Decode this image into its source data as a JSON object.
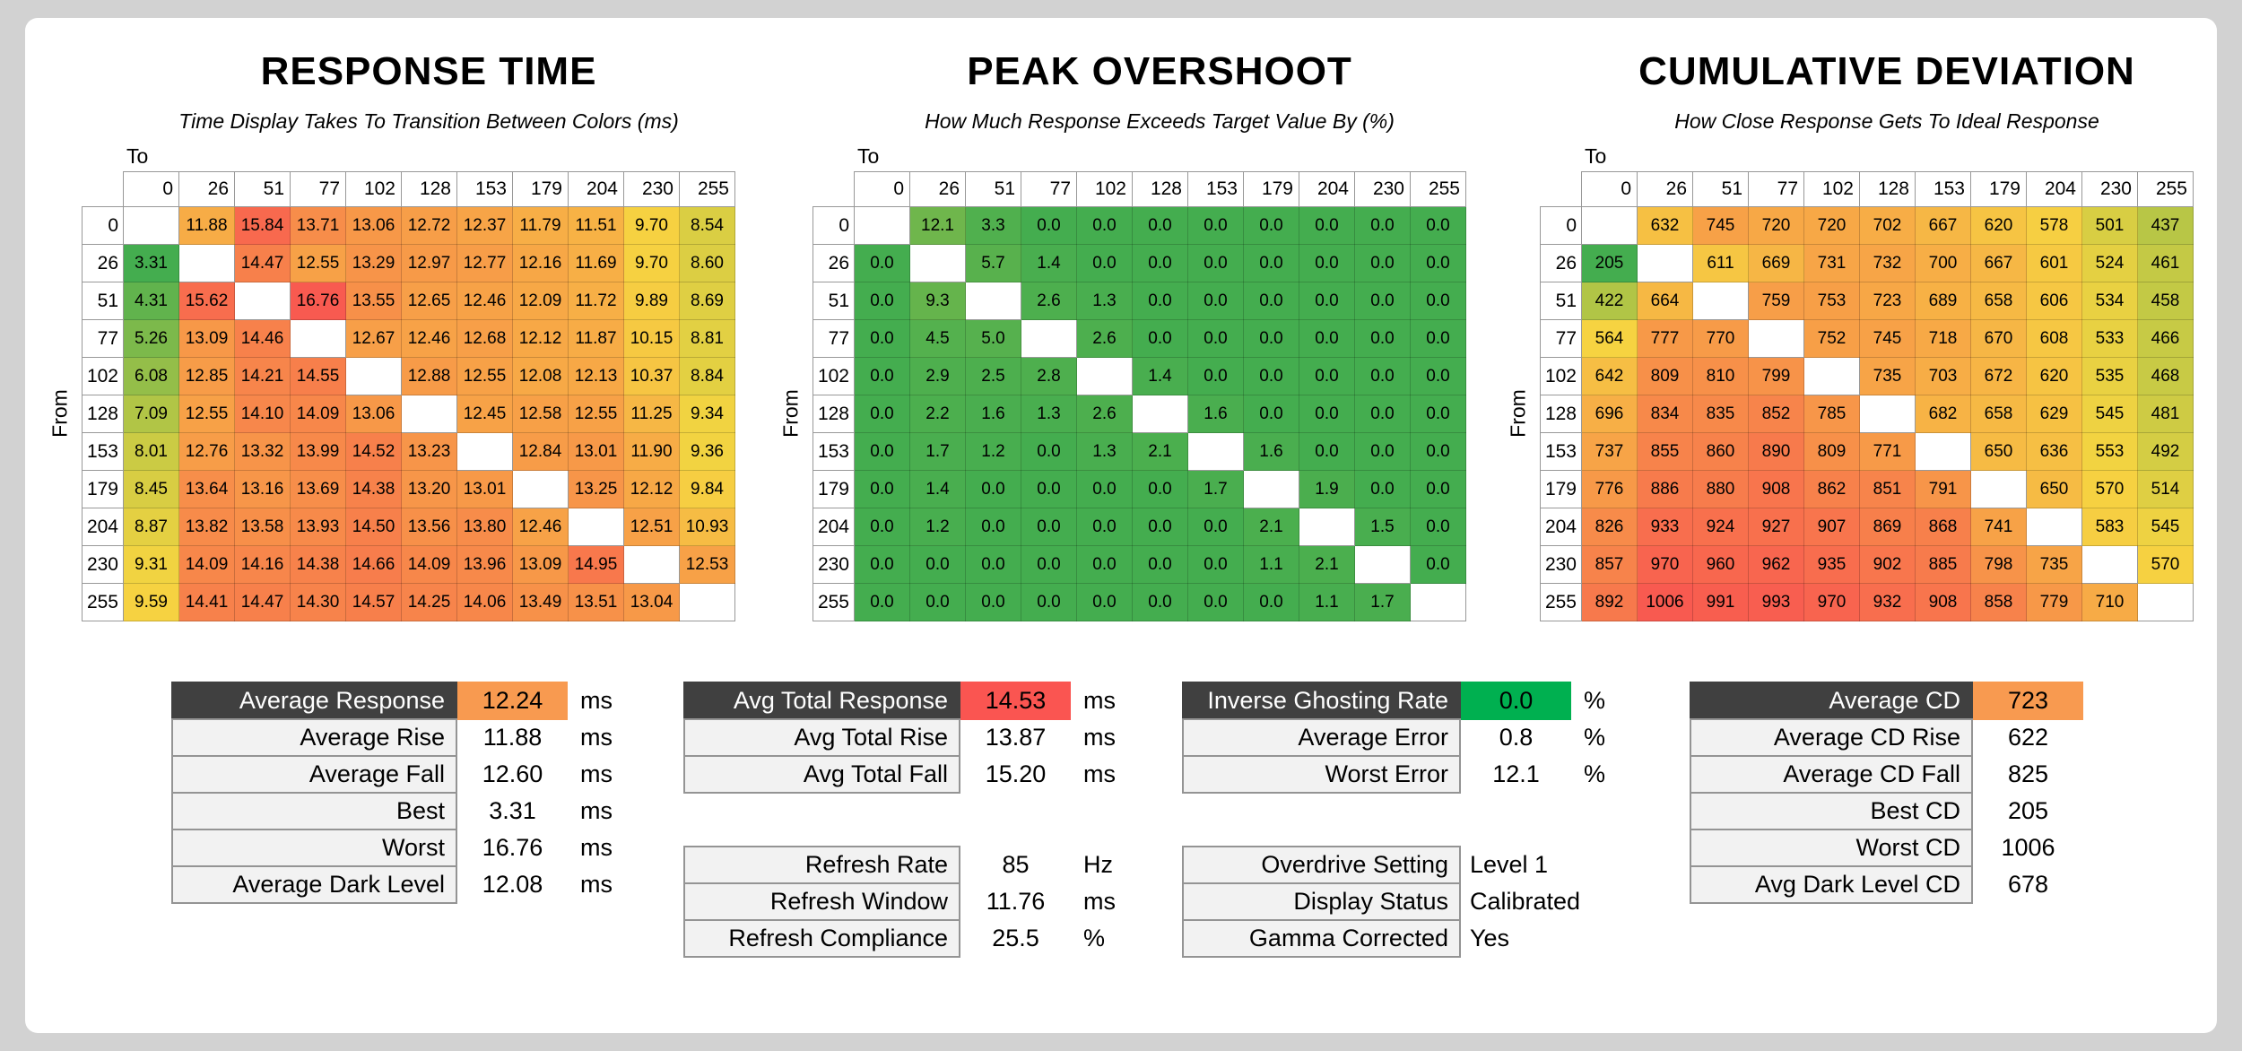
{
  "page": {
    "background": "#d2d2d2",
    "panel_background": "#ffffff",
    "header_bg": "#404040",
    "label_bg": "#f2f2f2",
    "accent_orange": "#F89A50",
    "accent_red": "#FA5551",
    "accent_green": "#00B050"
  },
  "chart_data": [
    {
      "type": "heatmap",
      "title": "RESPONSE TIME",
      "subtitle": "Time Display Takes To Transition Between Colors (ms)",
      "x_label": "To",
      "y_label": "From",
      "levels": [
        0,
        26,
        51,
        77,
        102,
        128,
        153,
        179,
        204,
        230,
        255
      ],
      "decimals": 2,
      "color_scale": {
        "min": 3.31,
        "mid": 9.5,
        "max": 16.76,
        "low": "#44AD4F",
        "mid_color": "#F6D441",
        "high": "#F85A50"
      },
      "rows": [
        [
          null,
          11.88,
          15.84,
          13.71,
          13.06,
          12.72,
          12.37,
          11.79,
          11.51,
          9.7,
          8.54
        ],
        [
          3.31,
          null,
          14.47,
          12.55,
          13.29,
          12.97,
          12.77,
          12.16,
          11.69,
          9.7,
          8.6
        ],
        [
          4.31,
          15.62,
          null,
          16.76,
          13.55,
          12.65,
          12.46,
          12.09,
          11.72,
          9.89,
          8.69
        ],
        [
          5.26,
          13.09,
          14.46,
          null,
          12.67,
          12.46,
          12.68,
          12.12,
          11.87,
          10.15,
          8.81
        ],
        [
          6.08,
          12.85,
          14.21,
          14.55,
          null,
          12.88,
          12.55,
          12.08,
          12.13,
          10.37,
          8.84
        ],
        [
          7.09,
          12.55,
          14.1,
          14.09,
          13.06,
          null,
          12.45,
          12.58,
          12.55,
          11.25,
          9.34
        ],
        [
          8.01,
          12.76,
          13.32,
          13.99,
          14.52,
          13.23,
          null,
          12.84,
          13.01,
          11.9,
          9.36
        ],
        [
          8.45,
          13.64,
          13.16,
          13.69,
          14.38,
          13.2,
          13.01,
          null,
          13.25,
          12.12,
          9.84
        ],
        [
          8.87,
          13.82,
          13.58,
          13.93,
          14.5,
          13.56,
          13.8,
          12.46,
          null,
          12.51,
          10.93
        ],
        [
          9.31,
          14.09,
          14.16,
          14.38,
          14.66,
          14.09,
          13.96,
          13.09,
          14.95,
          null,
          12.53
        ],
        [
          9.59,
          14.41,
          14.47,
          14.3,
          14.57,
          14.25,
          14.06,
          13.49,
          13.51,
          13.04,
          null
        ]
      ]
    },
    {
      "type": "heatmap",
      "title": "PEAK OVERSHOOT",
      "subtitle": "How Much Response Exceeds Target Value By (%)",
      "x_label": "To",
      "y_label": "From",
      "levels": [
        0,
        26,
        51,
        77,
        102,
        128,
        153,
        179,
        204,
        230,
        255
      ],
      "decimals": 1,
      "color_scale": {
        "min": 0,
        "mid": 50,
        "max": 100,
        "low": "#44AD4F",
        "mid_color": "#F6D441",
        "high": "#F85A50"
      },
      "rows": [
        [
          null,
          12.1,
          3.3,
          0.0,
          0.0,
          0.0,
          0.0,
          0.0,
          0.0,
          0.0,
          0.0
        ],
        [
          0.0,
          null,
          5.7,
          1.4,
          0.0,
          0.0,
          0.0,
          0.0,
          0.0,
          0.0,
          0.0
        ],
        [
          0.0,
          9.3,
          null,
          2.6,
          1.3,
          0.0,
          0.0,
          0.0,
          0.0,
          0.0,
          0.0
        ],
        [
          0.0,
          4.5,
          5.0,
          null,
          2.6,
          0.0,
          0.0,
          0.0,
          0.0,
          0.0,
          0.0
        ],
        [
          0.0,
          2.9,
          2.5,
          2.8,
          null,
          1.4,
          0.0,
          0.0,
          0.0,
          0.0,
          0.0
        ],
        [
          0.0,
          2.2,
          1.6,
          1.3,
          2.6,
          null,
          1.6,
          0.0,
          0.0,
          0.0,
          0.0
        ],
        [
          0.0,
          1.7,
          1.2,
          0.0,
          1.3,
          2.1,
          null,
          1.6,
          0.0,
          0.0,
          0.0
        ],
        [
          0.0,
          1.4,
          0.0,
          0.0,
          0.0,
          0.0,
          1.7,
          null,
          1.9,
          0.0,
          0.0
        ],
        [
          0.0,
          1.2,
          0.0,
          0.0,
          0.0,
          0.0,
          0.0,
          2.1,
          null,
          1.5,
          0.0
        ],
        [
          0.0,
          0.0,
          0.0,
          0.0,
          0.0,
          0.0,
          0.0,
          1.1,
          2.1,
          null,
          0.0
        ],
        [
          0.0,
          0.0,
          0.0,
          0.0,
          0.0,
          0.0,
          0.0,
          0.0,
          1.1,
          1.7,
          null
        ]
      ]
    },
    {
      "type": "heatmap",
      "title": "CUMULATIVE DEVIATION",
      "subtitle": "How Close Response Gets To Ideal Response",
      "x_label": "To",
      "y_label": "From",
      "levels": [
        0,
        26,
        51,
        77,
        102,
        128,
        153,
        179,
        204,
        230,
        255
      ],
      "decimals": 0,
      "color_scale": {
        "min": 205,
        "mid": 560,
        "max": 1006,
        "low": "#44AD4F",
        "mid_color": "#F6D441",
        "high": "#F85A50"
      },
      "rows": [
        [
          null,
          632,
          745,
          720,
          720,
          702,
          667,
          620,
          578,
          501,
          437
        ],
        [
          205,
          null,
          611,
          669,
          731,
          732,
          700,
          667,
          601,
          524,
          461
        ],
        [
          422,
          664,
          null,
          759,
          753,
          723,
          689,
          658,
          606,
          534,
          458
        ],
        [
          564,
          777,
          770,
          null,
          752,
          745,
          718,
          670,
          608,
          533,
          466
        ],
        [
          642,
          809,
          810,
          799,
          null,
          735,
          703,
          672,
          620,
          535,
          468
        ],
        [
          696,
          834,
          835,
          852,
          785,
          null,
          682,
          658,
          629,
          545,
          481
        ],
        [
          737,
          855,
          860,
          890,
          809,
          771,
          null,
          650,
          636,
          553,
          492
        ],
        [
          776,
          886,
          880,
          908,
          862,
          851,
          791,
          null,
          650,
          570,
          514
        ],
        [
          826,
          933,
          924,
          927,
          907,
          869,
          868,
          741,
          null,
          583,
          545
        ],
        [
          857,
          970,
          960,
          962,
          935,
          902,
          885,
          798,
          735,
          null,
          570
        ],
        [
          892,
          1006,
          991,
          993,
          970,
          932,
          908,
          858,
          779,
          710,
          null
        ]
      ]
    }
  ],
  "stat_tables": [
    {
      "id": "response-summary",
      "groups": [
        {
          "rows": [
            {
              "label": "Average Response",
              "value": "12.24",
              "unit": "ms",
              "style": "header",
              "value_bg": "#F89A50"
            },
            {
              "label": "Average Rise",
              "value": "11.88",
              "unit": "ms"
            },
            {
              "label": "Average Fall",
              "value": "12.60",
              "unit": "ms"
            },
            {
              "label": "Best",
              "value": "3.31",
              "unit": "ms"
            },
            {
              "label": "Worst",
              "value": "16.76",
              "unit": "ms"
            },
            {
              "label": "Average Dark Level",
              "value": "12.08",
              "unit": "ms"
            }
          ]
        }
      ]
    },
    {
      "id": "total-response-summary",
      "groups": [
        {
          "rows": [
            {
              "label": "Avg Total Response",
              "value": "14.53",
              "unit": "ms",
              "style": "header",
              "value_bg": "#FA5551"
            },
            {
              "label": "Avg Total Rise",
              "value": "13.87",
              "unit": "ms"
            },
            {
              "label": "Avg Total Fall",
              "value": "15.20",
              "unit": "ms"
            }
          ]
        },
        {
          "rows": [
            {
              "label": "Refresh Rate",
              "value": "85",
              "unit": "Hz"
            },
            {
              "label": "Refresh Window",
              "value": "11.76",
              "unit": "ms"
            },
            {
              "label": "Refresh Compliance",
              "value": "25.5",
              "unit": "%"
            }
          ]
        }
      ]
    },
    {
      "id": "overshoot-summary",
      "groups": [
        {
          "rows": [
            {
              "label": "Inverse Ghosting Rate",
              "value": "0.0",
              "unit": "%",
              "style": "header",
              "value_bg": "#00B050"
            },
            {
              "label": "Average Error",
              "value": "0.8",
              "unit": "%"
            },
            {
              "label": "Worst Error",
              "value": "12.1",
              "unit": "%"
            }
          ]
        },
        {
          "rows": [
            {
              "label": "Overdrive Setting",
              "value": "Level 1",
              "align": "left"
            },
            {
              "label": "Display Status",
              "value": "Calibrated",
              "align": "left"
            },
            {
              "label": "Gamma Corrected",
              "value": "Yes",
              "align": "left"
            }
          ]
        }
      ]
    },
    {
      "id": "cd-summary",
      "groups": [
        {
          "rows": [
            {
              "label": "Average CD",
              "value": "723",
              "style": "header",
              "value_bg": "#F89A50"
            },
            {
              "label": "Average CD Rise",
              "value": "622"
            },
            {
              "label": "Average CD Fall",
              "value": "825"
            },
            {
              "label": "Best CD",
              "value": "205"
            },
            {
              "label": "Worst CD",
              "value": "1006"
            },
            {
              "label": "Avg Dark Level CD",
              "value": "678"
            }
          ]
        }
      ]
    }
  ]
}
